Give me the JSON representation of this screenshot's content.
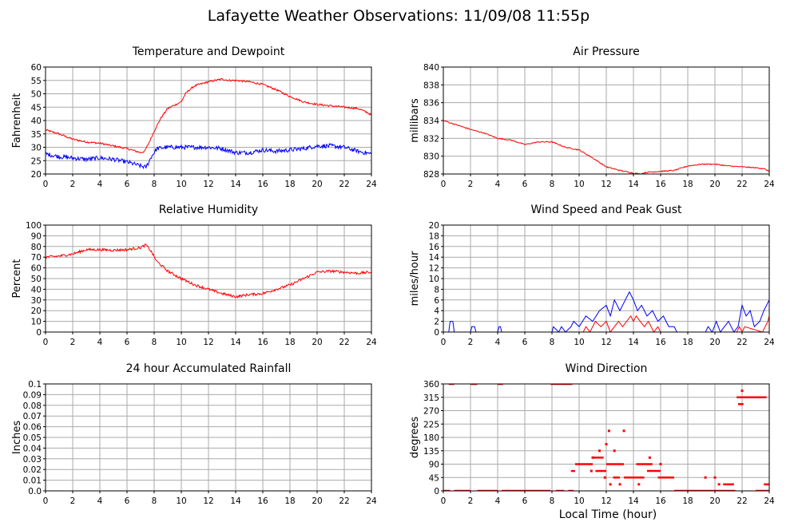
{
  "page_title": "Lafayette Weather Observations: 11/09/08 11:55p",
  "xaxis_label": "Local Time (hour)",
  "colors": {
    "red": "#ff0000",
    "blue": "#0000ff",
    "grid": "#aaaaaa",
    "frame": "#000000"
  },
  "chart_data": [
    {
      "id": "temp",
      "type": "line",
      "title": "Temperature and Dewpoint",
      "ylabel": "Fahrenheit",
      "xlim": [
        0,
        24
      ],
      "ylim": [
        20,
        60
      ],
      "xticks": [
        "0",
        "2",
        "4",
        "6",
        "8",
        "10",
        "12",
        "14",
        "16",
        "18",
        "20",
        "22",
        "24"
      ],
      "yticks": [
        "20",
        "25",
        "30",
        "35",
        "40",
        "45",
        "50",
        "55",
        "60"
      ],
      "series": [
        {
          "color": "#ff0000",
          "noise": 0.35,
          "x": [
            0,
            1,
            2,
            3,
            4,
            5,
            6,
            7,
            7.3,
            7.6,
            8,
            8.5,
            9,
            10,
            10.3,
            10.6,
            11,
            12,
            12.5,
            13,
            13.5,
            14,
            15,
            16,
            17,
            18,
            19,
            20,
            21,
            22,
            23,
            23.7,
            24
          ],
          "y": [
            36.5,
            35,
            33,
            32,
            31.5,
            30.5,
            29.5,
            28,
            28.5,
            31.5,
            36,
            41,
            44.5,
            47,
            50,
            51.5,
            53,
            54.5,
            55,
            55.5,
            55,
            55,
            54.5,
            53.5,
            51.5,
            49,
            47,
            46,
            45.5,
            45,
            44.5,
            43,
            42
          ]
        },
        {
          "color": "#0000ff",
          "noise": 0.8,
          "x": [
            0,
            1,
            2,
            3,
            4,
            5,
            6,
            7,
            7.4,
            7.8,
            8.2,
            9,
            10,
            11,
            12,
            13,
            14,
            15,
            16,
            17,
            18,
            19,
            20,
            21,
            22,
            23,
            24
          ],
          "y": [
            27.5,
            26.5,
            26,
            25.5,
            26,
            25.5,
            24.5,
            23,
            22.5,
            26.5,
            29.5,
            30,
            30,
            30,
            30,
            29.5,
            28,
            28,
            29,
            28.5,
            29,
            29.5,
            30.5,
            30.5,
            30,
            28.5,
            27.5
          ]
        }
      ]
    },
    {
      "id": "pressure",
      "type": "line",
      "title": "Air Pressure",
      "ylabel": "millibars",
      "xlim": [
        0,
        24
      ],
      "ylim": [
        828,
        840
      ],
      "xticks": [
        "0",
        "2",
        "4",
        "6",
        "8",
        "10",
        "12",
        "14",
        "16",
        "18",
        "20",
        "22",
        "24"
      ],
      "yticks": [
        "828",
        "830",
        "832",
        "834",
        "836",
        "838",
        "840"
      ],
      "series": [
        {
          "color": "#ff0000",
          "noise": 0.06,
          "x": [
            0,
            1,
            2,
            3,
            4,
            5,
            6,
            7,
            8,
            9,
            10,
            11,
            12,
            13,
            14,
            14.5,
            15,
            16,
            17,
            18,
            19,
            20,
            21,
            22,
            23,
            23.6,
            24
          ],
          "y": [
            834,
            833.5,
            833,
            832.6,
            832,
            831.8,
            831.3,
            831.6,
            831.6,
            831,
            830.7,
            829.8,
            828.8,
            828.4,
            828.1,
            828,
            828.2,
            828.3,
            828.4,
            828.9,
            829.1,
            829.1,
            828.9,
            828.8,
            828.7,
            828.6,
            828.3
          ]
        }
      ]
    },
    {
      "id": "humidity",
      "type": "line",
      "title": "Relative Humidity",
      "ylabel": "Percent",
      "xlim": [
        0,
        24
      ],
      "ylim": [
        0,
        100
      ],
      "xticks": [
        "0",
        "2",
        "4",
        "6",
        "8",
        "10",
        "12",
        "14",
        "16",
        "18",
        "20",
        "22",
        "24"
      ],
      "yticks": [
        "0",
        "10",
        "20",
        "30",
        "40",
        "50",
        "60",
        "70",
        "80",
        "90",
        "100"
      ],
      "series": [
        {
          "color": "#ff0000",
          "noise": 1.2,
          "x": [
            0,
            1,
            2,
            3,
            4,
            5,
            6,
            7,
            7.4,
            7.8,
            8.2,
            9,
            10,
            11,
            12,
            13,
            14,
            15,
            16,
            17,
            18,
            19,
            20,
            21,
            22,
            23,
            24
          ],
          "y": [
            70,
            71,
            73,
            77,
            77,
            76.5,
            77,
            79,
            81.5,
            75,
            66,
            57,
            50,
            44,
            40,
            36,
            33,
            35,
            36,
            40,
            44,
            50,
            56,
            57,
            56,
            55,
            56
          ]
        }
      ]
    },
    {
      "id": "wind",
      "type": "line",
      "title": "Wind Speed and Peak Gust",
      "ylabel": "miles/hour",
      "xlim": [
        0,
        24
      ],
      "ylim": [
        0,
        20
      ],
      "xticks": [
        "0",
        "2",
        "4",
        "6",
        "8",
        "10",
        "12",
        "14",
        "16",
        "18",
        "20",
        "22",
        "24"
      ],
      "yticks": [
        "0",
        "2",
        "4",
        "6",
        "8",
        "10",
        "12",
        "14",
        "16",
        "18",
        "20"
      ],
      "series": [
        {
          "color": "#0000ff",
          "noise": 0,
          "x": [
            0,
            0.4,
            0.5,
            0.7,
            0.8,
            2.0,
            2.1,
            2.3,
            2.4,
            4.0,
            4.1,
            4.2,
            4.3,
            8.0,
            8.1,
            8.5,
            8.7,
            9.0,
            9.4,
            9.6,
            10.0,
            10.5,
            11.0,
            11.5,
            12.0,
            12.3,
            12.6,
            13.0,
            13.4,
            13.7,
            14.0,
            14.3,
            14.6,
            15.0,
            15.4,
            15.8,
            16.2,
            16.6,
            17.0,
            17.2,
            19.3,
            19.5,
            19.8,
            20.1,
            20.4,
            20.7,
            21.0,
            21.4,
            21.7,
            22.0,
            22.3,
            22.6,
            22.9,
            23.3,
            23.6,
            24
          ],
          "y": [
            0,
            0,
            2,
            2,
            0,
            0,
            1,
            1,
            0,
            0,
            1,
            1,
            0,
            0,
            1,
            0,
            1,
            0,
            1,
            2,
            1,
            3,
            2,
            4,
            5,
            3,
            6,
            4,
            6,
            7.5,
            6,
            4,
            5,
            3,
            4,
            2,
            3,
            1,
            1,
            0,
            0,
            1,
            0,
            2,
            0,
            1,
            2,
            0,
            1,
            5,
            3,
            4,
            1,
            2,
            4,
            6
          ]
        },
        {
          "color": "#ff0000",
          "noise": 0,
          "x": [
            0,
            10.3,
            10.5,
            10.8,
            11.2,
            11.6,
            12.0,
            12.3,
            12.6,
            12.9,
            13.2,
            13.5,
            13.8,
            14.0,
            14.2,
            14.5,
            14.8,
            15.1,
            15.5,
            15.8,
            16.0,
            21.6,
            21.8,
            22.0,
            22.2,
            23.5,
            23.7,
            23.9,
            24
          ],
          "y": [
            0,
            0,
            1,
            0,
            2,
            1,
            2,
            0,
            1,
            2,
            1,
            2,
            3,
            2,
            3,
            2,
            1,
            2,
            0,
            1,
            0,
            0,
            1,
            0,
            1,
            0,
            1,
            2,
            3
          ]
        }
      ]
    },
    {
      "id": "rain",
      "type": "line",
      "title": "24 hour Accumulated Rainfall",
      "ylabel": "Inches",
      "xlim": [
        0,
        24
      ],
      "ylim": [
        0,
        0.1
      ],
      "xticks": [
        "0",
        "2",
        "4",
        "6",
        "8",
        "10",
        "12",
        "14",
        "16",
        "18",
        "20",
        "22",
        "24"
      ],
      "yticks": [
        "0.0",
        "0.01",
        "0.02",
        "0.03",
        "0.04",
        "0.05",
        "0.06",
        "0.07",
        "0.08",
        "0.09",
        "0.1"
      ],
      "series": [
        {
          "color": "#ff0000",
          "noise": 0,
          "x": [
            0,
            24
          ],
          "y": [
            0,
            0
          ]
        }
      ]
    },
    {
      "id": "direction",
      "type": "scatter",
      "title": "Wind Direction",
      "ylabel": "degrees",
      "xlim": [
        0,
        24
      ],
      "ylim": [
        0,
        360
      ],
      "xticks": [
        "0",
        "2",
        "4",
        "6",
        "8",
        "10",
        "12",
        "14",
        "16",
        "18",
        "20",
        "22",
        "24"
      ],
      "yticks": [
        "0",
        "45",
        "90",
        "135",
        "180",
        "225",
        "270",
        "315",
        "360"
      ],
      "segments": [
        {
          "x0": 0,
          "x1": 0.5,
          "y": 0
        },
        {
          "x0": 0.4,
          "x1": 0.8,
          "y": 360
        },
        {
          "x0": 0.8,
          "x1": 2.0,
          "y": 0
        },
        {
          "x0": 2.0,
          "x1": 2.5,
          "y": 360
        },
        {
          "x0": 2.5,
          "x1": 4.0,
          "y": 0
        },
        {
          "x0": 4.0,
          "x1": 4.4,
          "y": 360
        },
        {
          "x0": 4.3,
          "x1": 7.9,
          "y": 0
        },
        {
          "x0": 7.9,
          "x1": 9.5,
          "y": 360
        },
        {
          "x0": 8.3,
          "x1": 8.9,
          "y": 0
        },
        {
          "x0": 9.2,
          "x1": 9.6,
          "y": 0
        },
        {
          "x0": 9.4,
          "x1": 9.7,
          "y": 67
        },
        {
          "x0": 9.7,
          "x1": 11.0,
          "y": 90
        },
        {
          "x0": 11.0,
          "x1": 11.8,
          "y": 112
        },
        {
          "x0": 11.2,
          "x1": 12.0,
          "y": 67
        },
        {
          "x0": 12.0,
          "x1": 13.3,
          "y": 90
        },
        {
          "x0": 12.5,
          "x1": 13.0,
          "y": 45
        },
        {
          "x0": 13.3,
          "x1": 14.8,
          "y": 45
        },
        {
          "x0": 14.2,
          "x1": 15.4,
          "y": 90
        },
        {
          "x0": 15.0,
          "x1": 16.0,
          "y": 67
        },
        {
          "x0": 15.8,
          "x1": 17.0,
          "y": 45
        },
        {
          "x0": 17.0,
          "x1": 21.5,
          "y": 0
        },
        {
          "x0": 20.6,
          "x1": 21.4,
          "y": 22
        },
        {
          "x0": 21.6,
          "x1": 23.8,
          "y": 315
        },
        {
          "x0": 21.7,
          "x1": 22.1,
          "y": 292
        },
        {
          "x0": 23.0,
          "x1": 24.0,
          "y": 0
        },
        {
          "x0": 23.6,
          "x1": 24.0,
          "y": 22
        }
      ],
      "points": [
        {
          "x": 12.0,
          "y": 157
        },
        {
          "x": 12.2,
          "y": 202
        },
        {
          "x": 13.3,
          "y": 202
        },
        {
          "x": 12.6,
          "y": 135
        },
        {
          "x": 11.5,
          "y": 135
        },
        {
          "x": 11.9,
          "y": 45
        },
        {
          "x": 12.3,
          "y": 22
        },
        {
          "x": 13.0,
          "y": 22
        },
        {
          "x": 11.0,
          "y": 112
        },
        {
          "x": 14.4,
          "y": 22
        },
        {
          "x": 15.2,
          "y": 112
        },
        {
          "x": 16.0,
          "y": 90
        },
        {
          "x": 19.3,
          "y": 45
        },
        {
          "x": 20.0,
          "y": 45
        },
        {
          "x": 22.0,
          "y": 337
        },
        {
          "x": 20.3,
          "y": 22
        },
        {
          "x": 10.9,
          "y": 67
        }
      ]
    }
  ]
}
